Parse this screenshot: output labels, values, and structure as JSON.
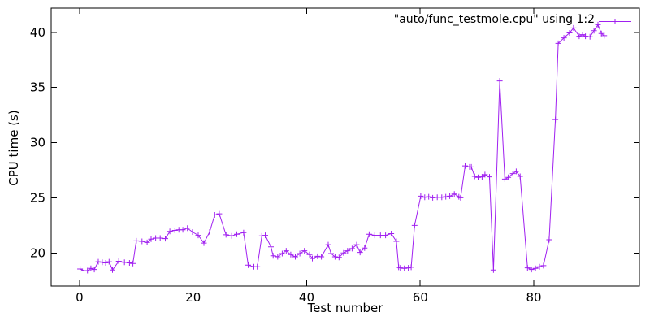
{
  "window": {
    "background": "#ffffff"
  },
  "colors": {
    "series_line": "#a020f0",
    "axis": "#000000",
    "text": "#000000",
    "background": "#ffffff"
  },
  "legend": {
    "label": "\"auto/func_testmole.cpu\" using 1:2",
    "position": "top-right"
  },
  "chart_data": {
    "type": "line",
    "title": "",
    "xlabel": "Test number",
    "ylabel": "CPU time (s)",
    "xlim": [
      -5,
      98.6
    ],
    "ylim": [
      17.0,
      42.2
    ],
    "xticks": [
      0,
      20,
      40,
      60,
      80
    ],
    "yticks": [
      20,
      25,
      30,
      35,
      40
    ],
    "grid": false,
    "border": true,
    "marker": "plus",
    "legend_position": "top-right",
    "series": [
      {
        "name": "\"auto/func_testmole.cpu\" using 1:2",
        "color": "#a020f0",
        "points": [
          [
            0.1,
            18.55
          ],
          [
            0.8,
            18.4
          ],
          [
            1.4,
            18.4
          ],
          [
            2.0,
            18.6
          ],
          [
            2.6,
            18.5
          ],
          [
            3.3,
            19.2
          ],
          [
            4.0,
            19.15
          ],
          [
            4.6,
            19.1
          ],
          [
            5.2,
            19.2
          ],
          [
            5.8,
            18.45
          ],
          [
            6.9,
            19.25
          ],
          [
            7.9,
            19.15
          ],
          [
            8.8,
            19.1
          ],
          [
            9.4,
            19.05
          ],
          [
            10.0,
            21.1
          ],
          [
            11.0,
            21.05
          ],
          [
            11.9,
            20.95
          ],
          [
            12.6,
            21.25
          ],
          [
            13.4,
            21.35
          ],
          [
            14.2,
            21.35
          ],
          [
            15.1,
            21.3
          ],
          [
            15.9,
            21.95
          ],
          [
            16.8,
            22.05
          ],
          [
            17.5,
            22.1
          ],
          [
            18.2,
            22.1
          ],
          [
            19.0,
            22.25
          ],
          [
            19.9,
            21.9
          ],
          [
            20.9,
            21.6
          ],
          [
            21.9,
            20.9
          ],
          [
            22.9,
            21.9
          ],
          [
            23.8,
            23.45
          ],
          [
            24.6,
            23.55
          ],
          [
            25.8,
            21.65
          ],
          [
            26.8,
            21.55
          ],
          [
            27.7,
            21.7
          ],
          [
            28.9,
            21.85
          ],
          [
            29.7,
            18.9
          ],
          [
            30.7,
            18.75
          ],
          [
            31.3,
            18.75
          ],
          [
            32.1,
            21.55
          ],
          [
            32.7,
            21.6
          ],
          [
            33.7,
            20.55
          ],
          [
            34.1,
            19.75
          ],
          [
            34.9,
            19.65
          ],
          [
            35.7,
            19.95
          ],
          [
            36.4,
            20.2
          ],
          [
            37.2,
            19.85
          ],
          [
            38.0,
            19.65
          ],
          [
            38.8,
            19.95
          ],
          [
            39.6,
            20.2
          ],
          [
            40.5,
            19.85
          ],
          [
            41.0,
            19.5
          ],
          [
            41.9,
            19.7
          ],
          [
            42.6,
            19.65
          ],
          [
            43.8,
            20.75
          ],
          [
            44.3,
            19.95
          ],
          [
            45.0,
            19.65
          ],
          [
            45.7,
            19.6
          ],
          [
            46.5,
            20.0
          ],
          [
            47.2,
            20.2
          ],
          [
            48.0,
            20.4
          ],
          [
            48.8,
            20.75
          ],
          [
            49.4,
            20.05
          ],
          [
            50.2,
            20.45
          ],
          [
            51.0,
            21.7
          ],
          [
            52.0,
            21.6
          ],
          [
            53.0,
            21.6
          ],
          [
            53.9,
            21.6
          ],
          [
            54.9,
            21.75
          ],
          [
            55.8,
            21.05
          ],
          [
            56.2,
            18.7
          ],
          [
            56.5,
            18.65
          ],
          [
            57.2,
            18.6
          ],
          [
            57.9,
            18.65
          ],
          [
            58.4,
            18.7
          ],
          [
            59.0,
            22.5
          ],
          [
            60.1,
            25.15
          ],
          [
            60.8,
            25.05
          ],
          [
            61.5,
            25.1
          ],
          [
            62.2,
            25.0
          ],
          [
            63.0,
            25.05
          ],
          [
            63.8,
            25.05
          ],
          [
            64.5,
            25.1
          ],
          [
            65.2,
            25.15
          ],
          [
            66.0,
            25.35
          ],
          [
            66.8,
            25.1
          ],
          [
            67.1,
            25.0
          ],
          [
            67.9,
            27.9
          ],
          [
            68.7,
            27.8
          ],
          [
            69.0,
            27.8
          ],
          [
            69.6,
            26.95
          ],
          [
            70.2,
            26.85
          ],
          [
            70.9,
            26.9
          ],
          [
            71.4,
            27.1
          ],
          [
            72.2,
            26.9
          ],
          [
            72.9,
            18.45
          ],
          [
            74.0,
            35.6
          ],
          [
            74.9,
            26.7
          ],
          [
            75.5,
            26.85
          ],
          [
            76.3,
            27.2
          ],
          [
            76.9,
            27.4
          ],
          [
            77.6,
            26.95
          ],
          [
            78.9,
            18.65
          ],
          [
            79.6,
            18.5
          ],
          [
            80.3,
            18.6
          ],
          [
            81.0,
            18.75
          ],
          [
            81.7,
            18.85
          ],
          [
            82.7,
            21.2
          ],
          [
            83.8,
            32.1
          ],
          [
            84.3,
            39.0
          ],
          [
            85.3,
            39.5
          ],
          [
            86.3,
            39.95
          ],
          [
            87.0,
            40.4
          ],
          [
            88.0,
            39.65
          ],
          [
            88.6,
            39.8
          ],
          [
            89.1,
            39.65
          ],
          [
            89.9,
            39.6
          ],
          [
            90.6,
            40.15
          ],
          [
            91.3,
            40.7
          ],
          [
            91.9,
            39.9
          ],
          [
            92.4,
            39.7
          ]
        ]
      }
    ]
  }
}
